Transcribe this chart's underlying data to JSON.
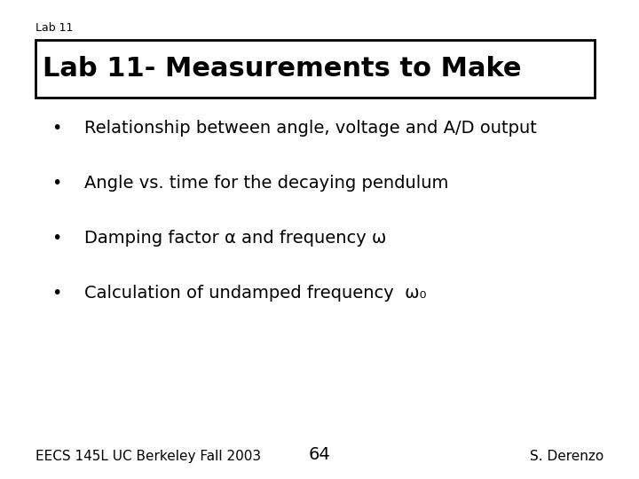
{
  "slide_label": "Lab 11",
  "title": "Lab 11- Measurements to Make",
  "bullets": [
    "Relationship between angle, voltage and A/D output",
    "Angle vs. time for the decaying pendulum",
    "Damping factor α and frequency ω",
    "Calculation of undamped frequency  ω₀"
  ],
  "footer_left": "EECS 145L UC Berkeley Fall 2003",
  "footer_center": "64",
  "footer_right": "S. Derenzo",
  "bg_color": "#ffffff",
  "text_color": "#000000",
  "title_fontsize": 22,
  "slide_label_fontsize": 9,
  "bullet_fontsize": 14,
  "footer_fontsize": 11
}
